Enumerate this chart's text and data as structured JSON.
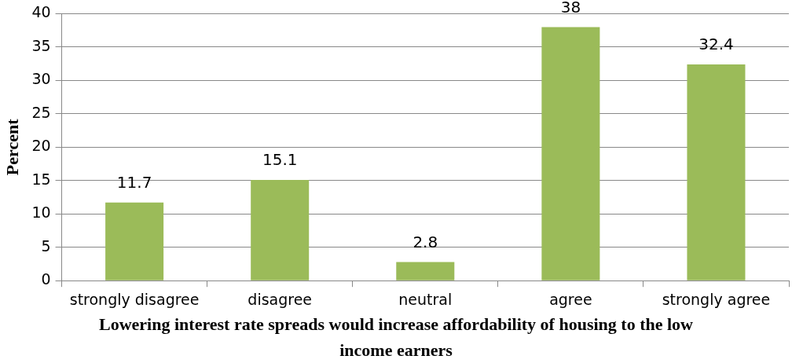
{
  "chart_data": {
    "type": "bar",
    "xlabel": "Lowering interest rate spreads would increase affordability of housing to the low income earners",
    "ylabel": "Percent",
    "categories": [
      "strongly disagree",
      "disagree",
      "neutral",
      "agree",
      "strongly agree"
    ],
    "values": [
      11.7,
      15.1,
      2.8,
      38,
      32.4
    ],
    "color": "#9bbb59",
    "ylim": [
      0,
      40
    ],
    "yticks": [
      0,
      5,
      10,
      15,
      20,
      25,
      30,
      35,
      40
    ],
    "grid": "y",
    "legend": false,
    "data_labels": true
  }
}
